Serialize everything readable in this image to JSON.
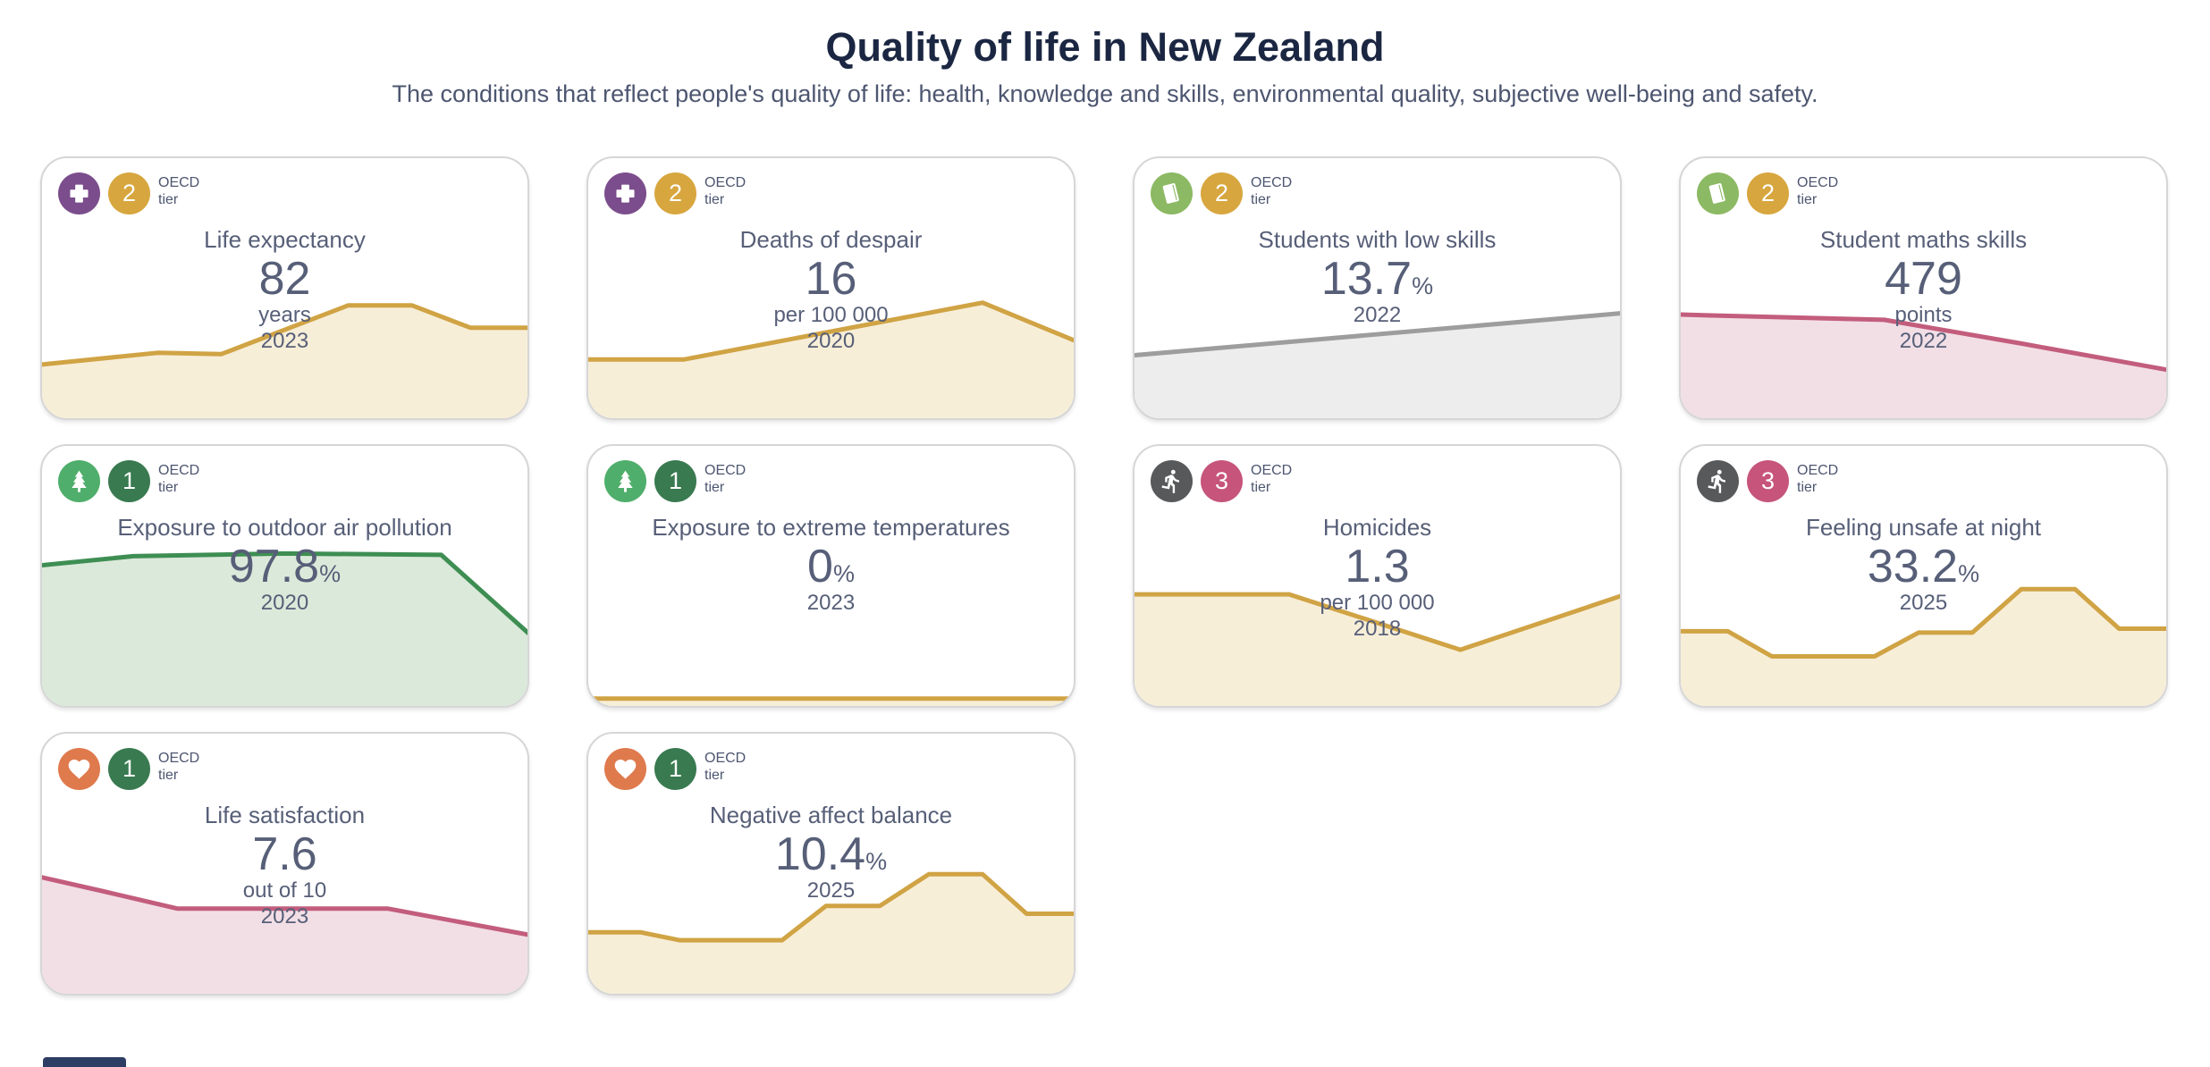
{
  "header": {
    "title": "Quality of life in New Zealand",
    "subtitle": "The conditions that reflect people's quality of life: health, knowledge and skills, environmental quality, subjective well-being and safety."
  },
  "tier_label": {
    "line1": "OECD",
    "line2": "tier"
  },
  "colors": {
    "background": "#ffffff",
    "card_border": "#d6d6d6",
    "heading": "#1b2742",
    "body_text": "#575f78",
    "tier1_badge": "#397a50",
    "tier2_badge": "#d7a63e",
    "tier3_badge": "#c6547b",
    "health_icon": "#7b4d8c",
    "knowledge_icon": "#8cb963",
    "environment_icon": "#4fae6b",
    "safety_icon": "#58595b",
    "wellbeing_icon": "#df7a4d",
    "footer_bar": "#2e3d63"
  },
  "chart_data": [
    {
      "type": "area",
      "title": "Life expectancy",
      "value": "82",
      "value_suffix": "",
      "unit": "years",
      "year": "2023",
      "icon": "health-cross-icon",
      "icon_color": "#7b4d8c",
      "tier": "2",
      "tier_color": "#d7a63e",
      "line_color": "#d0a344",
      "fill_color": "#f7eed8",
      "sparkline": [
        [
          0,
          0.79
        ],
        [
          0.24,
          0.745
        ],
        [
          0.37,
          0.75
        ],
        [
          0.63,
          0.565
        ],
        [
          0.76,
          0.565
        ],
        [
          0.88,
          0.65
        ],
        [
          1,
          0.65
        ]
      ]
    },
    {
      "type": "area",
      "title": "Deaths of despair",
      "value": "16",
      "value_suffix": "",
      "unit": "per 100 000",
      "year": "2020",
      "icon": "health-cross-icon",
      "icon_color": "#7b4d8c",
      "tier": "2",
      "tier_color": "#d7a63e",
      "line_color": "#d0a344",
      "fill_color": "#f7eed8",
      "sparkline": [
        [
          0,
          0.77
        ],
        [
          0.2,
          0.77
        ],
        [
          0.81,
          0.555
        ],
        [
          1,
          0.7
        ]
      ]
    },
    {
      "type": "area",
      "title": "Students with low skills",
      "value": "13.7",
      "value_suffix": "%",
      "unit": "",
      "year": "2022",
      "icon": "book-icon",
      "icon_color": "#8cb963",
      "tier": "2",
      "tier_color": "#d7a63e",
      "line_color": "#9d9d9d",
      "fill_color": "#ededed",
      "sparkline": [
        [
          0,
          0.755
        ],
        [
          1,
          0.595
        ]
      ]
    },
    {
      "type": "area",
      "title": "Student maths skills",
      "value": "479",
      "value_suffix": "",
      "unit": "points",
      "year": "2022",
      "icon": "book-icon",
      "icon_color": "#8cb963",
      "tier": "2",
      "tier_color": "#d7a63e",
      "line_color": "#c35d7d",
      "fill_color": "#f2dfe6",
      "sparkline": [
        [
          0,
          0.6
        ],
        [
          0.42,
          0.62
        ],
        [
          0.7,
          0.71
        ],
        [
          1,
          0.81
        ]
      ]
    },
    {
      "type": "area",
      "title": "Exposure to outdoor air pollution",
      "value": "97.8",
      "value_suffix": "%",
      "unit": "",
      "year": "2020",
      "icon": "tree-icon",
      "icon_color": "#4fae6b",
      "tier": "1",
      "tier_color": "#397a50",
      "line_color": "#3e8e53",
      "fill_color": "#dbe9da",
      "sparkline": [
        [
          0,
          0.46
        ],
        [
          0.19,
          0.425
        ],
        [
          0.5,
          0.415
        ],
        [
          0.82,
          0.42
        ],
        [
          1,
          0.72
        ]
      ]
    },
    {
      "type": "area",
      "title": "Exposure to extreme temperatures",
      "value": "0",
      "value_suffix": "%",
      "unit": "",
      "year": "2023",
      "icon": "tree-icon",
      "icon_color": "#4fae6b",
      "tier": "1",
      "tier_color": "#397a50",
      "line_color": "#d0a344",
      "fill_color": "#f7eed8",
      "sparkline": [
        [
          0,
          0.965
        ],
        [
          1,
          0.965
        ]
      ]
    },
    {
      "type": "area",
      "title": "Homicides",
      "value": "1.3",
      "value_suffix": "",
      "unit": "per 100 000",
      "year": "2018",
      "icon": "running-person-icon",
      "icon_color": "#58595b",
      "tier": "3",
      "tier_color": "#c6547b",
      "line_color": "#d0a344",
      "fill_color": "#f7eed8",
      "sparkline": [
        [
          0,
          0.57
        ],
        [
          0.32,
          0.57
        ],
        [
          0.67,
          0.78
        ],
        [
          1,
          0.575
        ]
      ]
    },
    {
      "type": "area",
      "title": "Feeling unsafe at night",
      "value": "33.2",
      "value_suffix": "%",
      "unit": "",
      "year": "2025",
      "icon": "running-person-icon",
      "icon_color": "#58595b",
      "tier": "3",
      "tier_color": "#c6547b",
      "line_color": "#d0a344",
      "fill_color": "#f7eed8",
      "sparkline": [
        [
          0,
          0.71
        ],
        [
          0.1,
          0.71
        ],
        [
          0.19,
          0.805
        ],
        [
          0.4,
          0.805
        ],
        [
          0.49,
          0.715
        ],
        [
          0.6,
          0.715
        ],
        [
          0.7,
          0.55
        ],
        [
          0.81,
          0.55
        ],
        [
          0.9,
          0.7
        ],
        [
          1,
          0.7
        ]
      ]
    },
    {
      "type": "area",
      "title": "Life satisfaction",
      "value": "7.6",
      "value_suffix": "",
      "unit": "out of 10",
      "year": "2023",
      "icon": "heart-icon",
      "icon_color": "#df7a4d",
      "tier": "1",
      "tier_color": "#397a50",
      "line_color": "#c35d7d",
      "fill_color": "#f2dfe6",
      "sparkline": [
        [
          0,
          0.55
        ],
        [
          0.13,
          0.605
        ],
        [
          0.28,
          0.67
        ],
        [
          0.71,
          0.67
        ],
        [
          1,
          0.77
        ]
      ]
    },
    {
      "type": "area",
      "title": "Negative affect balance",
      "value": "10.4",
      "value_suffix": "%",
      "unit": "",
      "year": "2025",
      "icon": "heart-icon",
      "icon_color": "#df7a4d",
      "tier": "1",
      "tier_color": "#397a50",
      "line_color": "#d0a344",
      "fill_color": "#f7eed8",
      "sparkline": [
        [
          0,
          0.76
        ],
        [
          0.11,
          0.76
        ],
        [
          0.19,
          0.79
        ],
        [
          0.4,
          0.79
        ],
        [
          0.49,
          0.66
        ],
        [
          0.6,
          0.66
        ],
        [
          0.7,
          0.54
        ],
        [
          0.81,
          0.54
        ],
        [
          0.9,
          0.69
        ],
        [
          1,
          0.69
        ]
      ]
    }
  ]
}
